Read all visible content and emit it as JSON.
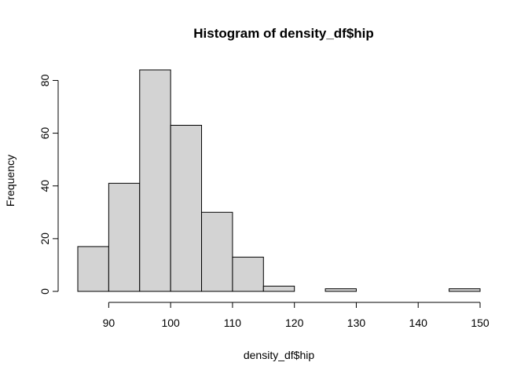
{
  "chart_data": {
    "type": "bar",
    "title": "Histogram of density_df$hip",
    "xlabel": "density_df$hip",
    "ylabel": "Frequency",
    "bins": [
      {
        "from": 85,
        "to": 90,
        "count": 17
      },
      {
        "from": 90,
        "to": 95,
        "count": 41
      },
      {
        "from": 95,
        "to": 100,
        "count": 84
      },
      {
        "from": 100,
        "to": 105,
        "count": 63
      },
      {
        "from": 105,
        "to": 110,
        "count": 30
      },
      {
        "from": 110,
        "to": 115,
        "count": 13
      },
      {
        "from": 115,
        "to": 120,
        "count": 2
      },
      {
        "from": 120,
        "to": 125,
        "count": 0
      },
      {
        "from": 125,
        "to": 130,
        "count": 1
      },
      {
        "from": 130,
        "to": 135,
        "count": 0
      },
      {
        "from": 135,
        "to": 140,
        "count": 0
      },
      {
        "from": 140,
        "to": 145,
        "count": 0
      },
      {
        "from": 145,
        "to": 150,
        "count": 1
      }
    ],
    "xlim": [
      85,
      150
    ],
    "ylim": [
      0,
      84
    ],
    "x_ticks": [
      90,
      100,
      110,
      120,
      130,
      140,
      150
    ],
    "y_ticks": [
      0,
      20,
      40,
      60,
      80
    ],
    "grid": false,
    "colors": {
      "bar_fill": "#d3d3d3",
      "bar_stroke": "#000000"
    }
  }
}
